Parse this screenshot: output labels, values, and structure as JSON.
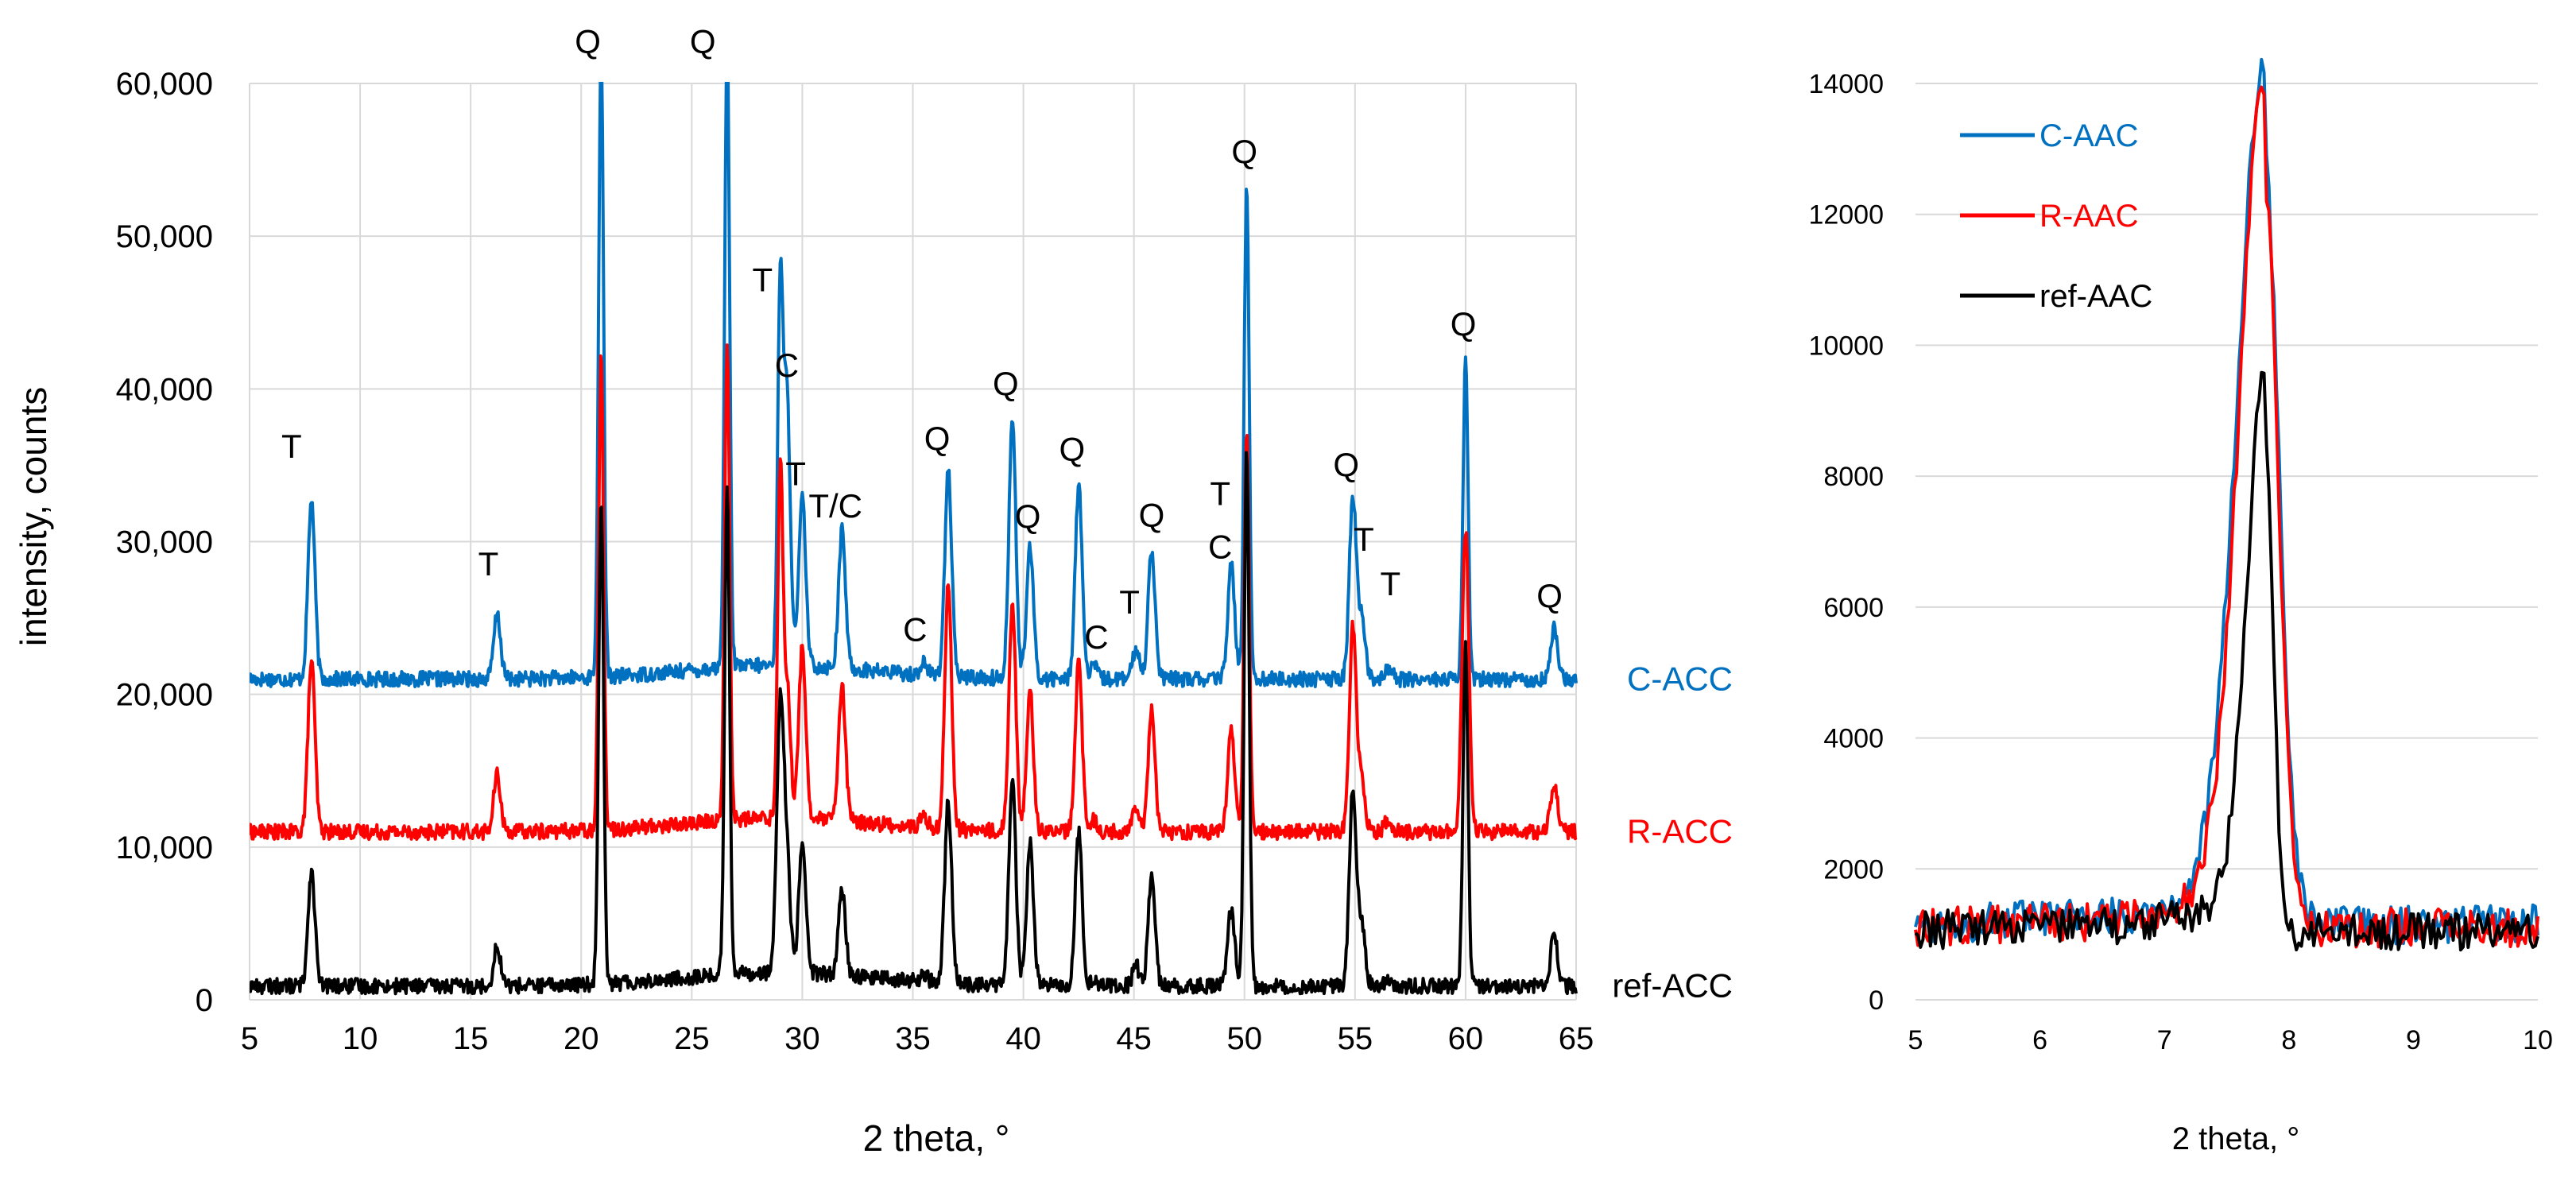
{
  "chart_data": [
    {
      "type": "line",
      "title": "",
      "xlabel": "2 theta, °",
      "ylabel": "intensity, counts",
      "xlim": [
        5,
        65
      ],
      "ylim": [
        0,
        60000
      ],
      "x_ticks": [
        "5",
        "10",
        "15",
        "20",
        "25",
        "30",
        "35",
        "40",
        "45",
        "50",
        "55",
        "60",
        "65"
      ],
      "y_ticks": [
        "0",
        "10,000",
        "20,000",
        "30,000",
        "40,000",
        "50,000",
        "60,000"
      ],
      "grid": "vertical and horizontal",
      "series": [
        {
          "name": "C-ACC",
          "color": "#0070C0",
          "baseline": 21000,
          "peaks": [
            [
              7.8,
              11800
            ],
            [
              16.2,
              4200
            ],
            [
              20.9,
              41000
            ],
            [
              26.6,
              41000
            ],
            [
              29.0,
              24000
            ],
            [
              29.3,
              18000
            ],
            [
              30.0,
              11000
            ],
            [
              31.8,
              9000
            ],
            [
              35.5,
              800
            ],
            [
              36.6,
              13500
            ],
            [
              39.5,
              17000
            ],
            [
              40.3,
              8500
            ],
            [
              42.5,
              12800
            ],
            [
              43.2,
              800
            ],
            [
              45.1,
              2000
            ],
            [
              45.8,
              8600
            ],
            [
              49.4,
              7500
            ],
            [
              50.1,
              32500
            ],
            [
              54.9,
              12000
            ],
            [
              55.3,
              4000
            ],
            [
              56.5,
              800
            ],
            [
              60.0,
              21000
            ],
            [
              64.0,
              3300
            ]
          ]
        },
        {
          "name": "R-ACC",
          "color": "#FF0000",
          "baseline": 11000,
          "peaks": [
            [
              7.8,
              11300
            ],
            [
              16.2,
              3700
            ],
            [
              20.9,
              31000
            ],
            [
              26.6,
              31000
            ],
            [
              29.0,
              22600
            ],
            [
              29.3,
              9000
            ],
            [
              30.0,
              11300
            ],
            [
              31.8,
              8800
            ],
            [
              35.5,
              800
            ],
            [
              36.6,
              16000
            ],
            [
              39.5,
              15000
            ],
            [
              40.3,
              9200
            ],
            [
              42.5,
              11100
            ],
            [
              43.2,
              800
            ],
            [
              45.1,
              1800
            ],
            [
              45.8,
              8000
            ],
            [
              49.4,
              6700
            ],
            [
              50.1,
              26300
            ],
            [
              54.9,
              13500
            ],
            [
              55.3,
              3500
            ],
            [
              56.5,
              800
            ],
            [
              60.0,
              19800
            ],
            [
              64.0,
              3100
            ]
          ]
        },
        {
          "name": "ref-ACC",
          "color": "#000000",
          "baseline": 900,
          "peaks": [
            [
              7.8,
              7600
            ],
            [
              16.2,
              2600
            ],
            [
              20.9,
              32000
            ],
            [
              26.6,
              32000
            ],
            [
              29.0,
              17000
            ],
            [
              29.3,
              7000
            ],
            [
              30.0,
              8800
            ],
            [
              31.8,
              5500
            ],
            [
              35.5,
              500
            ],
            [
              36.6,
              11900
            ],
            [
              39.5,
              13500
            ],
            [
              40.3,
              9400
            ],
            [
              42.5,
              10000
            ],
            [
              43.2,
              500
            ],
            [
              45.1,
              1300
            ],
            [
              45.8,
              7300
            ],
            [
              49.4,
              5000
            ],
            [
              50.1,
              35000
            ],
            [
              54.9,
              13000
            ],
            [
              55.3,
              4100
            ],
            [
              56.5,
              500
            ],
            [
              60.0,
              22400
            ],
            [
              64.0,
              3300
            ]
          ]
        }
      ],
      "series_labels": [
        "C-ACC",
        "R-ACC",
        "ref-ACC"
      ],
      "annotations": [
        {
          "text": "T",
          "x": 6.9,
          "y": 35500
        },
        {
          "text": "T",
          "x": 15.8,
          "y": 27800
        },
        {
          "text": "Q",
          "x": 20.3,
          "y": 62000
        },
        {
          "text": "Q",
          "x": 25.5,
          "y": 62000
        },
        {
          "text": "T",
          "x": 28.2,
          "y": 46400
        },
        {
          "text": "C",
          "x": 29.3,
          "y": 40800
        },
        {
          "text": "T",
          "x": 29.7,
          "y": 33700
        },
        {
          "text": "T/C",
          "x": 31.5,
          "y": 31600
        },
        {
          "text": "C",
          "x": 35.1,
          "y": 23500
        },
        {
          "text": "Q",
          "x": 36.1,
          "y": 36000
        },
        {
          "text": "Q",
          "x": 39.2,
          "y": 39600
        },
        {
          "text": "Q",
          "x": 40.2,
          "y": 30900
        },
        {
          "text": "Q",
          "x": 42.2,
          "y": 35300
        },
        {
          "text": "C",
          "x": 43.3,
          "y": 23000
        },
        {
          "text": "T",
          "x": 44.8,
          "y": 25300
        },
        {
          "text": "Q",
          "x": 45.8,
          "y": 31000
        },
        {
          "text": "T",
          "x": 48.9,
          "y": 32400
        },
        {
          "text": "C",
          "x": 48.9,
          "y": 28900
        },
        {
          "text": "Q",
          "x": 50.0,
          "y": 54800
        },
        {
          "text": "Q",
          "x": 54.6,
          "y": 34300
        },
        {
          "text": "T",
          "x": 55.4,
          "y": 29400
        },
        {
          "text": "T",
          "x": 56.6,
          "y": 26500
        },
        {
          "text": "Q",
          "x": 59.9,
          "y": 43500
        },
        {
          "text": "Q",
          "x": 63.8,
          "y": 25700
        }
      ]
    },
    {
      "type": "line",
      "title": "",
      "xlabel": "2 theta, °",
      "ylabel": "",
      "xlim": [
        5,
        10
      ],
      "ylim": [
        0,
        14000
      ],
      "x_ticks": [
        "5",
        "6",
        "7",
        "8",
        "9",
        "10"
      ],
      "y_ticks": [
        "0",
        "2000",
        "4000",
        "6000",
        "8000",
        "10000",
        "12000",
        "14000"
      ],
      "grid": "horizontal",
      "legend": "top-left",
      "series": [
        {
          "name": "C-AAC",
          "color": "#0070C0",
          "baseline": 1150,
          "peak_x": 7.8,
          "peak_y": 12850,
          "left_width": 0.3,
          "right_width": 0.17
        },
        {
          "name": "R-AAC",
          "color": "#FF0000",
          "baseline": 1100,
          "peak_x": 7.8,
          "peak_y": 12500,
          "left_width": 0.28,
          "right_width": 0.16
        },
        {
          "name": "ref-AAC",
          "color": "#000000",
          "baseline": 1050,
          "peak_x": 7.8,
          "peak_y": 8650,
          "left_width": 0.19,
          "right_width": 0.1
        }
      ]
    }
  ]
}
